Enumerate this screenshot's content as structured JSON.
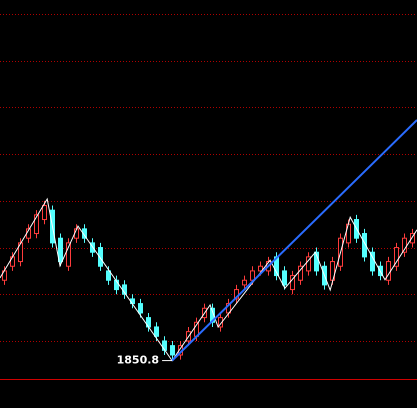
{
  "chart_data": {
    "type": "candlestick",
    "ylim": [
      1846,
      1928
    ],
    "xlim": [
      -0.5,
      51.6
    ],
    "grid_levels": [
      1855,
      1865,
      1875,
      1885,
      1895,
      1905,
      1915,
      1925
    ],
    "grid_color": "#b00000",
    "up_color": "#ff3c3c",
    "down_color": "#54ffff",
    "candles": {
      "open": [
        1868,
        1871,
        1872,
        1877,
        1878,
        1881,
        1883,
        1877,
        1871,
        1877,
        1879,
        1876,
        1875,
        1870,
        1868,
        1867,
        1864,
        1863,
        1860,
        1858,
        1855,
        1854,
        1852,
        1855,
        1856,
        1860,
        1862,
        1858,
        1861,
        1864,
        1867,
        1868,
        1870,
        1870,
        1873,
        1870,
        1866,
        1868,
        1870,
        1874,
        1871,
        1868,
        1871,
        1876,
        1881,
        1878,
        1874,
        1871,
        1868,
        1871,
        1874,
        1876
      ],
      "high": [
        1871,
        1874,
        1877,
        1880,
        1883,
        1885,
        1884,
        1878,
        1877,
        1880,
        1880,
        1877,
        1876,
        1871,
        1869,
        1868,
        1865,
        1864,
        1861,
        1859,
        1856,
        1855,
        1855,
        1858,
        1860,
        1863,
        1863,
        1861,
        1864,
        1867,
        1869,
        1871,
        1872,
        1873,
        1874,
        1871,
        1870,
        1872,
        1874,
        1875,
        1872,
        1873,
        1878,
        1881,
        1882,
        1879,
        1875,
        1872,
        1873,
        1876,
        1878,
        1879
      ],
      "low": [
        1867,
        1870,
        1871,
        1876,
        1877,
        1880,
        1875,
        1871,
        1870,
        1876,
        1876,
        1873,
        1870,
        1867,
        1865,
        1864,
        1862,
        1860,
        1857,
        1855,
        1852,
        1850.8,
        1851,
        1854,
        1855,
        1859,
        1858,
        1857,
        1860,
        1863,
        1866,
        1867,
        1869,
        1869,
        1868,
        1866,
        1865,
        1867,
        1869,
        1869,
        1866,
        1867,
        1870,
        1875,
        1876,
        1872,
        1869,
        1868,
        1867,
        1870,
        1873,
        1875
      ],
      "close": [
        1870,
        1873,
        1876,
        1879,
        1882,
        1884,
        1876,
        1872,
        1876,
        1879,
        1877,
        1874,
        1871,
        1868,
        1866,
        1865,
        1863,
        1861,
        1858,
        1856,
        1853,
        1852,
        1854,
        1857,
        1859,
        1862,
        1859,
        1860,
        1863,
        1866,
        1868,
        1870,
        1871,
        1872,
        1869,
        1867,
        1869,
        1871,
        1873,
        1870,
        1867,
        1872,
        1877,
        1880,
        1877,
        1873,
        1870,
        1869,
        1872,
        1875,
        1877,
        1878
      ]
    },
    "zigzag": {
      "color": "#ffffff",
      "x": [
        -0.5,
        5.4,
        7,
        9.25,
        21,
        25.75,
        26.75,
        33.25,
        35.1,
        38.9,
        40.75,
        43.25,
        47.6,
        51.6
      ],
      "y": [
        1868.5,
        1885.4,
        1871.1,
        1879.6,
        1850.8,
        1862.7,
        1858.0,
        1872.3,
        1866.3,
        1874.0,
        1865.9,
        1881.5,
        1868.1,
        1878.8
      ]
    },
    "trendline": {
      "color": "#2a6cff",
      "x": [
        21,
        51.6
      ],
      "y": [
        1850.8,
        1902.3
      ]
    },
    "annotation": "1850.8"
  }
}
